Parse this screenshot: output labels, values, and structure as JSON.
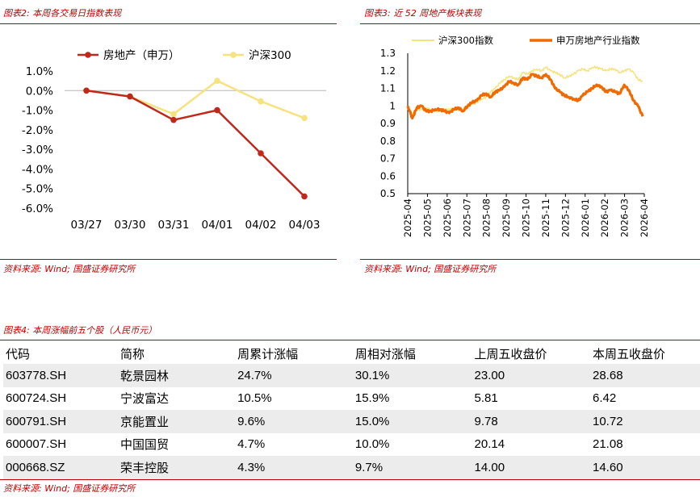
{
  "fig2": {
    "caption": "图表2:  本周各交易日指数表现",
    "source": "资料来源:  Wind;  国盛证券研究所"
  },
  "fig3": {
    "caption": "图表3:  近 52 周地产板块表现",
    "source": "资料来源:  Wind;  国盛证券研究所"
  },
  "fig4": {
    "caption": "图表4:  本周涨幅前五个股（人民币元）",
    "source": "资料来源:  Wind;  国盛证券研究所",
    "headers": [
      "代码",
      "简称",
      "周累计涨幅",
      "周相对涨幅",
      "上周五收盘价",
      "本周五收盘价"
    ],
    "rows": [
      [
        "603778.SH",
        "乾景园林",
        "24.7%",
        "30.1%",
        "23.00",
        "28.68"
      ],
      [
        "600724.SH",
        "宁波富达",
        "10.5%",
        "15.9%",
        "5.81",
        "6.42"
      ],
      [
        "600791.SH",
        "京能置业",
        "9.6%",
        "15.0%",
        "9.78",
        "10.72"
      ],
      [
        "600007.SH",
        "中国国贸",
        "4.7%",
        "10.0%",
        "20.14",
        "21.08"
      ],
      [
        "000668.SZ",
        "荣丰控股",
        "4.3%",
        "9.7%",
        "14.00",
        "14.60"
      ]
    ]
  },
  "colors": {
    "red": "#c0281b",
    "yellow": "#f6e27f",
    "orange": "#f06a00",
    "caption": "#c00000"
  },
  "chart_data": [
    {
      "type": "line",
      "title": "",
      "categories": [
        "03/27",
        "03/30",
        "03/31",
        "04/01",
        "04/02",
        "04/03"
      ],
      "series": [
        {
          "name": "房地产（申万）",
          "values": [
            0.0,
            -0.3,
            -1.5,
            -1.0,
            -3.2,
            -5.4
          ],
          "color": "#c0281b"
        },
        {
          "name": "沪深300",
          "values": [
            0.0,
            -0.3,
            -1.2,
            0.5,
            -0.55,
            -1.4
          ],
          "color": "#f6e27f"
        }
      ],
      "yticks": [
        "1.0%",
        "0.0%",
        "-1.0%",
        "-2.0%",
        "-3.0%",
        "-4.0%",
        "-5.0%",
        "-6.0%"
      ],
      "ylim": [
        -6,
        1
      ],
      "legend": "top"
    },
    {
      "type": "line",
      "title": "",
      "xticks": [
        "2025-04",
        "2025-05",
        "2025-06",
        "2025-07",
        "2025-08",
        "2025-09",
        "2025-10",
        "2025-11",
        "2025-12",
        "2026-01",
        "2026-02",
        "2026-03",
        "2026-04"
      ],
      "yticks": [
        "1.3",
        "1.2",
        "1.1",
        "1",
        "0.9",
        "0.8",
        "0.7",
        "0.6",
        "0.5"
      ],
      "ylim": [
        0.5,
        1.3
      ],
      "legend": "top",
      "series": [
        {
          "name": "沪深300指数",
          "color": "#f6e27f",
          "weekly": [
            1.0,
            0.95,
            0.98,
            0.98,
            0.99,
            0.98,
            0.97,
            0.97,
            0.98,
            0.98,
            0.98,
            0.99,
            0.98,
            1.0,
            1.01,
            1.02,
            1.04,
            1.05,
            1.08,
            1.1,
            1.13,
            1.15,
            1.17,
            1.16,
            1.15,
            1.19,
            1.18,
            1.2,
            1.21,
            1.2,
            1.22,
            1.2,
            1.19,
            1.18,
            1.16,
            1.17,
            1.18,
            1.2,
            1.21,
            1.2,
            1.22,
            1.22,
            1.21,
            1.2,
            1.21,
            1.21,
            1.19,
            1.2,
            1.21,
            1.19,
            1.15,
            1.14
          ]
        },
        {
          "name": "申万房地产行业指数",
          "color": "#f06a00",
          "weekly": [
            1.0,
            0.93,
            0.99,
            1.0,
            0.97,
            0.97,
            0.98,
            0.98,
            0.97,
            0.96,
            0.98,
            0.99,
            0.97,
            1.0,
            1.02,
            1.03,
            1.06,
            1.07,
            1.05,
            1.08,
            1.09,
            1.11,
            1.14,
            1.13,
            1.12,
            1.16,
            1.15,
            1.18,
            1.17,
            1.16,
            1.18,
            1.15,
            1.1,
            1.08,
            1.06,
            1.05,
            1.04,
            1.03,
            1.06,
            1.08,
            1.1,
            1.12,
            1.11,
            1.08,
            1.09,
            1.08,
            1.07,
            1.12,
            1.09,
            1.03,
            1.0,
            0.94
          ]
        }
      ]
    }
  ]
}
